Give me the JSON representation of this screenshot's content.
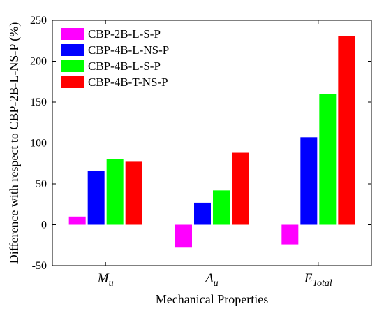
{
  "chart_data": {
    "type": "bar",
    "title": "",
    "xlabel": "Mechanical Properties",
    "ylabel": "Difference with respect to CBP-2B-L-NS-P (%)",
    "ylim": [
      -50,
      250
    ],
    "yticks": [
      -50,
      0,
      50,
      100,
      150,
      200,
      250
    ],
    "grid": false,
    "legend_position": "top-left",
    "categories": [
      {
        "main": "M",
        "sub": "u"
      },
      {
        "main": "Δ",
        "sub": "u"
      },
      {
        "main": "E",
        "sub": "Total"
      }
    ],
    "series": [
      {
        "name": "CBP-2B-L-S-P",
        "color": "#ff00ff",
        "values": [
          10,
          -28,
          -24
        ]
      },
      {
        "name": "CBP-4B-L-NS-P",
        "color": "#0000ff",
        "values": [
          66,
          27,
          107
        ]
      },
      {
        "name": "CBP-4B-L-S-P",
        "color": "#00ff00",
        "values": [
          80,
          42,
          160
        ]
      },
      {
        "name": "CBP-4B-T-NS-P",
        "color": "#ff0000",
        "values": [
          77,
          88,
          231
        ]
      }
    ]
  }
}
